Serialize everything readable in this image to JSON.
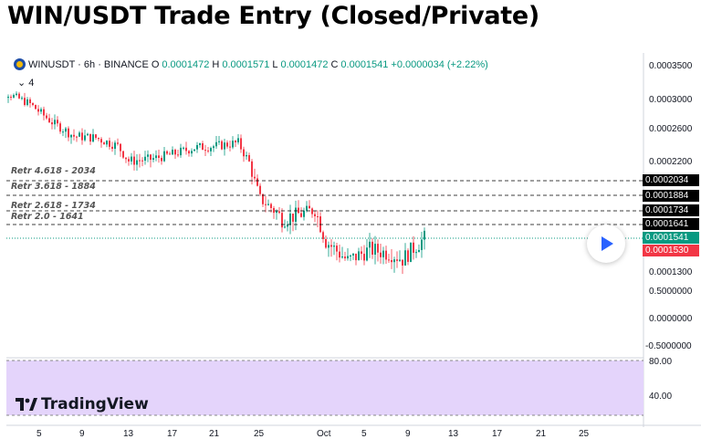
{
  "title": "WIN/USDT Trade Entry (Closed/Private)",
  "header": {
    "symbol": "WINUSDT · 6h · BINANCE",
    "o_label": "O",
    "o": "0.0001472",
    "h_label": "H",
    "h": "0.0001571",
    "l_label": "L",
    "l": "0.0001472",
    "c_label": "C",
    "c": "0.0001541",
    "change": "+0.0000034 (+2.22%)",
    "indicators_toggle": "4"
  },
  "colors": {
    "up": "#089981",
    "down": "#f23645",
    "rsi_band": "#e4d4fb",
    "accent": "#2962ff"
  },
  "retracements": [
    {
      "label": "Retr 4.618 - 2034",
      "price": 0.0002034,
      "tag": "0.0002034"
    },
    {
      "label": "Retr 3.618 - 1884",
      "price": 0.0001884,
      "tag": "0.0001884"
    },
    {
      "label": "Retr 2.618 - 1734",
      "price": 0.0001734,
      "tag": "0.0001734"
    },
    {
      "label": "Retr 2.0 - 1641",
      "price": 0.0001641,
      "tag": "0.0001641"
    }
  ],
  "price_tags": {
    "last": "0.0001541",
    "prev": "0.0001530"
  },
  "logo": "TradingView",
  "chart_data": {
    "type": "candlestick",
    "symbol": "WINUSDT",
    "interval": "6h",
    "exchange": "BINANCE",
    "price_axis_ticks": [
      "0.0003500",
      "0.0003000",
      "0.0002600",
      "0.0002200",
      "0.0001300",
      "0.5000000",
      "0.0000000",
      "-0.5000000"
    ],
    "rsi_axis_ticks": [
      "80.00",
      "40.00"
    ],
    "x_ticks": [
      "5",
      "9",
      "13",
      "17",
      "21",
      "25",
      "Oct",
      "5",
      "9",
      "13",
      "17",
      "21",
      "25"
    ],
    "price_path": [
      [
        "Aug 31",
        0.000305
      ],
      [
        "Sep 2",
        0.00031
      ],
      [
        "Sep 4",
        0.000295
      ],
      [
        "Sep 6",
        0.00027
      ],
      [
        "Sep 8",
        0.000252
      ],
      [
        "Sep 10",
        0.00025
      ],
      [
        "Sep 12",
        0.00024
      ],
      [
        "Sep 13",
        0.000222
      ],
      [
        "Sep 15",
        0.000224
      ],
      [
        "Sep 17",
        0.00023
      ],
      [
        "Sep 19",
        0.000238
      ],
      [
        "Sep 21",
        0.00024
      ],
      [
        "Sep 23",
        0.000244
      ],
      [
        "Sep 24",
        0.00022
      ],
      [
        "Sep 25",
        0.000185
      ],
      [
        "Sep 27",
        0.000168
      ],
      [
        "Sep 29",
        0.000172
      ],
      [
        "Sep 30",
        0.000175
      ],
      [
        "Oct 1",
        0.000152
      ],
      [
        "Oct 3",
        0.000138
      ],
      [
        "Oct 5",
        0.000146
      ],
      [
        "Oct 7",
        0.000143
      ],
      [
        "Oct 8",
        0.000139
      ],
      [
        "Oct 9",
        0.000147
      ],
      [
        "Oct 10",
        0.0001541
      ]
    ]
  }
}
